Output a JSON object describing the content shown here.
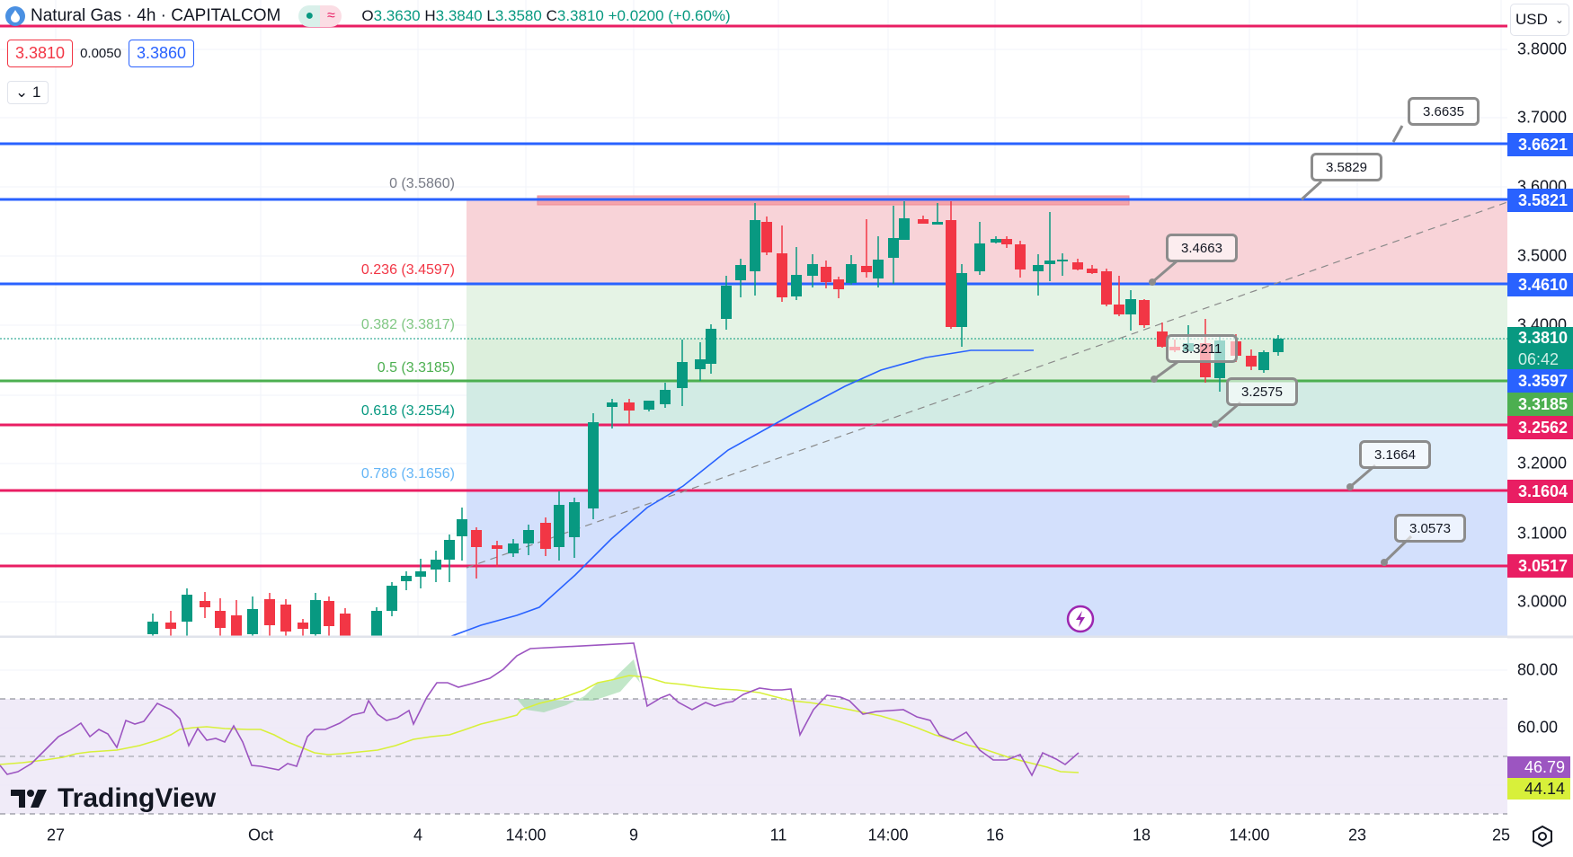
{
  "header": {
    "symbol_title": "Natural Gas · 4h · CAPITALCOM",
    "symbol_icon": "flame-icon",
    "status_market": "●",
    "status_delay": "≈",
    "ohlc": {
      "open_label": "O",
      "open": "3.3630",
      "high_label": "H",
      "high": "3.3840",
      "low_label": "L",
      "low": "3.3580",
      "close_label": "C",
      "close": "3.3810",
      "change": "+0.0200 (+0.60%)"
    }
  },
  "quote": {
    "sell": "3.3810",
    "spread": "0.0050",
    "buy": "3.3860",
    "collapse_label": "1",
    "sell_color": "#f23645",
    "buy_color": "#2962ff"
  },
  "price_axis": {
    "currency": "USD",
    "ticks": [
      "3.8000",
      "3.7000",
      "3.6000",
      "3.5000",
      "3.4000",
      "3.3000",
      "3.2000",
      "3.1000",
      "3.0000"
    ],
    "tags": [
      {
        "value": "3.6621",
        "color": "#2962ff",
        "price": 3.6621
      },
      {
        "value": "3.5821",
        "color": "#2962ff",
        "price": 3.5821
      },
      {
        "value": "3.4610",
        "color": "#2962ff",
        "price": 3.461
      },
      {
        "value": "3.3597",
        "color": "#2962ff",
        "price": 3.3597
      },
      {
        "value": "3.3185",
        "color": "#4caf50",
        "price": 3.3185
      },
      {
        "value": "3.2562",
        "color": "#e91e63",
        "price": 3.2562
      },
      {
        "value": "3.1604",
        "color": "#e91e63",
        "price": 3.1604
      },
      {
        "value": "3.0517",
        "color": "#e91e63",
        "price": 3.0517
      }
    ],
    "current_price": "3.3810",
    "countdown": "06:42"
  },
  "fibonacci": {
    "levels": [
      {
        "label": "0 (3.5860)",
        "color": "#787b86"
      },
      {
        "label": "0.236 (3.4597)",
        "color": "#f23645"
      },
      {
        "label": "0.382 (3.3817)",
        "color": "#81c784"
      },
      {
        "label": "0.5 (3.3185)",
        "color": "#4caf50"
      },
      {
        "label": "0.618 (3.2554)",
        "color": "#089981"
      },
      {
        "label": "0.786 (3.1656)",
        "color": "#64b5f6"
      }
    ]
  },
  "callouts": [
    "3.6635",
    "3.5829",
    "3.4663",
    "3.3211",
    "3.2575",
    "3.1664",
    "3.0573"
  ],
  "rsi_axis": {
    "ticks": [
      "80.00",
      "60.00"
    ],
    "rsi_value": "46.79",
    "rsi_ma_value": "44.14",
    "rsi_color": "#9c55c1",
    "ma_color": "#d8f03a"
  },
  "time_axis": {
    "labels": [
      "27",
      "Oct",
      "4",
      "14:00",
      "9",
      "11",
      "14:00",
      "16",
      "18",
      "14:00",
      "23",
      "25"
    ]
  },
  "branding": {
    "logo_text": "TradingView"
  },
  "chart_data": {
    "type": "candlestick",
    "title": "Natural Gas · 4h · CAPITALCOM",
    "ylim": [
      2.95,
      3.85
    ],
    "current": {
      "open": 3.363,
      "high": 3.384,
      "low": 3.358,
      "close": 3.381,
      "change": "+0.0200",
      "change_pct": "+0.60%"
    },
    "horizontal_levels": [
      3.6621,
      3.5821,
      3.461,
      3.3597,
      3.2562,
      3.1604,
      3.0517
    ],
    "fib_levels": [
      {
        "ratio": 0,
        "price": 3.586
      },
      {
        "ratio": 0.236,
        "price": 3.4597
      },
      {
        "ratio": 0.382,
        "price": 3.3817
      },
      {
        "ratio": 0.5,
        "price": 3.3185
      },
      {
        "ratio": 0.618,
        "price": 3.2554
      },
      {
        "ratio": 0.786,
        "price": 3.1656
      }
    ],
    "rsi": {
      "value": 46.79,
      "ma": 44.14,
      "upper_band": 70,
      "mid_band": 50,
      "lower_band": 30
    }
  }
}
